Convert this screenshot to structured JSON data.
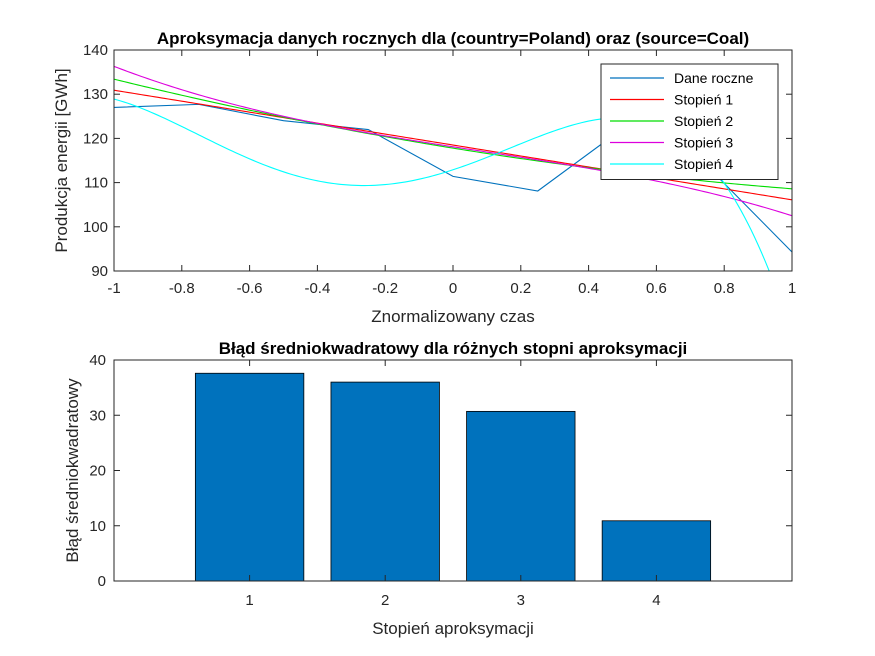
{
  "chart_data": [
    {
      "type": "line",
      "title": "Aproksymacja danych rocznych dla (country=Poland) oraz (source=Coal)",
      "xlabel": "Znormalizowany czas",
      "ylabel": "Produkcja energii [GWh]",
      "xlim": [
        -1,
        1
      ],
      "ylim": [
        90,
        140
      ],
      "xticks": [
        -1,
        -0.8,
        -0.6,
        -0.4,
        -0.2,
        0,
        0.2,
        0.4,
        0.6,
        0.8,
        1
      ],
      "xtick_labels": [
        "-1",
        "-0.8",
        "-0.6",
        "-0.4",
        "-0.2",
        "0",
        "0.2",
        "0.4",
        "0.6",
        "0.8",
        "1"
      ],
      "yticks": [
        90,
        100,
        110,
        120,
        130,
        140
      ],
      "ytick_labels": [
        "90",
        "100",
        "110",
        "120",
        "130",
        "140"
      ],
      "grid": false,
      "legend_location": "top-right",
      "series": [
        {
          "name": "Dane roczne",
          "color": "#0072BD",
          "x": [
            -1,
            -0.75,
            -0.5,
            -0.25,
            0,
            0.25,
            0.5,
            0.75,
            1
          ],
          "y": [
            127.0,
            127.7,
            124.0,
            122.0,
            111.4,
            108.1,
            122.2,
            113.7,
            94.3
          ]
        },
        {
          "name": "Stopień 1",
          "color": "#FF0000",
          "coef": [
            118.5,
            -12.4,
            0,
            0,
            0
          ]
        },
        {
          "name": "Stopień 2",
          "color": "#00DD00",
          "coef": [
            117.8,
            -12.4,
            3.2,
            0,
            0
          ]
        },
        {
          "name": "Stopień 3",
          "color": "#DD00DD",
          "coef": [
            118.1,
            -11.9,
            1.3,
            -5.0,
            0
          ]
        },
        {
          "name": "Stopień 4",
          "color": "#00FFFF",
          "coef": [
            112.9,
            25.2,
            33.7,
            -51.9,
            -44.4
          ]
        }
      ]
    },
    {
      "type": "bar",
      "title": "Błąd średniokwadratowy dla różnych stopni aproksymacji",
      "xlabel": "Stopień aproksymacji",
      "ylabel": "Błąd średniokwadratowy",
      "categories": [
        "1",
        "2",
        "3",
        "4"
      ],
      "values": [
        37.6,
        36.0,
        30.7,
        10.9
      ],
      "xlim": [
        0,
        5
      ],
      "ylim": [
        0,
        40
      ],
      "yticks": [
        0,
        10,
        20,
        30,
        40
      ],
      "ytick_labels": [
        "0",
        "10",
        "20",
        "30",
        "40"
      ],
      "bar_color": "#0072BD",
      "grid": false
    }
  ]
}
